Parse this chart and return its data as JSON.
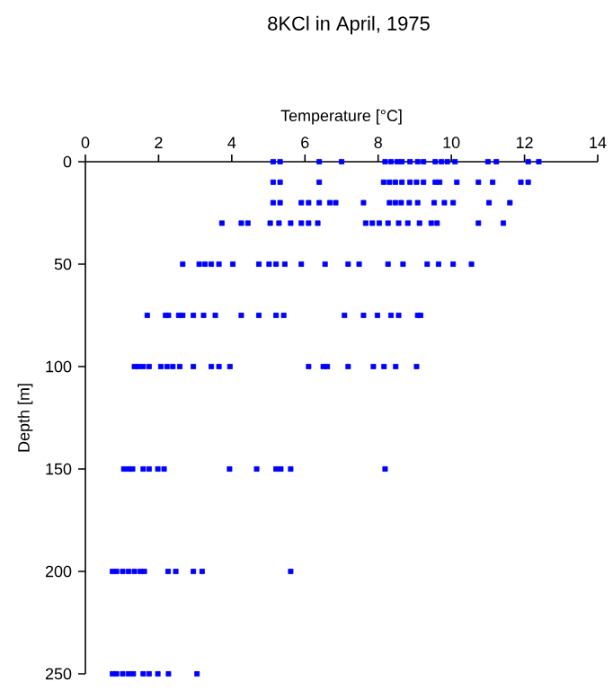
{
  "chart_data": {
    "type": "scatter",
    "title": "8KCl in April, 1975",
    "xlabel": "Temperature [°C]",
    "ylabel": "Depth [m]",
    "xlim": [
      0,
      14
    ],
    "xticks": [
      0,
      2,
      4,
      6,
      8,
      10,
      12,
      14
    ],
    "ylim": [
      250,
      0
    ],
    "yticks": [
      0,
      50,
      100,
      150,
      200,
      250
    ],
    "marker": "square",
    "series": [
      {
        "color": "#0000ff",
        "x": [
          5.13,
          5.32,
          6.39,
          7.0,
          8.19,
          8.35,
          8.52,
          8.65,
          8.87,
          9.08,
          9.24,
          9.56,
          9.73,
          9.89,
          10.1,
          11.0,
          11.23,
          12.1,
          12.39,
          5.13,
          5.32,
          6.39,
          8.15,
          8.31,
          8.47,
          8.65,
          8.87,
          9.05,
          9.24,
          9.56,
          9.68,
          10.15,
          10.74,
          11.13,
          11.9,
          12.1,
          5.13,
          5.32,
          5.9,
          6.1,
          6.39,
          6.68,
          6.84,
          7.6,
          8.31,
          8.47,
          8.63,
          8.85,
          9.08,
          9.53,
          9.81,
          10.05,
          11.03,
          11.6,
          3.73,
          4.26,
          4.44,
          5.05,
          5.29,
          5.61,
          5.9,
          6.1,
          6.35,
          7.66,
          7.84,
          8.03,
          8.27,
          8.56,
          8.81,
          9.13,
          9.45,
          9.61,
          10.74,
          11.42,
          2.66,
          3.11,
          3.27,
          3.44,
          3.65,
          4.03,
          4.74,
          5.02,
          5.21,
          5.45,
          5.9,
          6.55,
          7.18,
          7.48,
          8.27,
          8.68,
          9.34,
          9.65,
          10.05,
          10.55,
          1.69,
          2.19,
          2.27,
          2.55,
          2.66,
          2.95,
          3.23,
          3.55,
          4.26,
          4.74,
          5.21,
          5.42,
          7.08,
          7.6,
          7.98,
          8.35,
          8.56,
          9.08,
          9.16,
          1.34,
          1.45,
          1.58,
          1.74,
          2.06,
          2.23,
          2.39,
          2.58,
          2.95,
          3.44,
          3.65,
          3.95,
          6.1,
          6.5,
          6.61,
          7.18,
          7.87,
          8.16,
          8.48,
          9.05,
          1.05,
          1.18,
          1.29,
          1.58,
          1.74,
          1.98,
          2.15,
          3.94,
          4.68,
          5.21,
          5.34,
          5.61,
          8.19,
          0.74,
          0.85,
          1.02,
          1.18,
          1.34,
          1.5,
          1.61,
          2.26,
          2.47,
          2.95,
          3.19,
          5.61,
          0.74,
          0.85,
          1.02,
          1.18,
          1.31,
          1.58,
          1.74,
          1.98,
          2.27,
          3.05
        ],
        "values": [
          0,
          0,
          0,
          0,
          0,
          0,
          0,
          0,
          0,
          0,
          0,
          0,
          0,
          0,
          0,
          0,
          0,
          0,
          0,
          10,
          10,
          10,
          10,
          10,
          10,
          10,
          10,
          10,
          10,
          10,
          10,
          10,
          10,
          10,
          10,
          10,
          20,
          20,
          20,
          20,
          20,
          20,
          20,
          20,
          20,
          20,
          20,
          20,
          20,
          20,
          20,
          20,
          20,
          20,
          30,
          30,
          30,
          30,
          30,
          30,
          30,
          30,
          30,
          30,
          30,
          30,
          30,
          30,
          30,
          30,
          30,
          30,
          30,
          30,
          50,
          50,
          50,
          50,
          50,
          50,
          50,
          50,
          50,
          50,
          50,
          50,
          50,
          50,
          50,
          50,
          50,
          50,
          50,
          50,
          75,
          75,
          75,
          75,
          75,
          75,
          75,
          75,
          75,
          75,
          75,
          75,
          75,
          75,
          75,
          75,
          75,
          75,
          75,
          100,
          100,
          100,
          100,
          100,
          100,
          100,
          100,
          100,
          100,
          100,
          100,
          100,
          100,
          100,
          100,
          100,
          100,
          100,
          100,
          150,
          150,
          150,
          150,
          150,
          150,
          150,
          150,
          150,
          150,
          150,
          150,
          150,
          200,
          200,
          200,
          200,
          200,
          200,
          200,
          200,
          200,
          200,
          200,
          200,
          250,
          250,
          250,
          250,
          250,
          250,
          250,
          250,
          250,
          250
        ]
      }
    ]
  }
}
